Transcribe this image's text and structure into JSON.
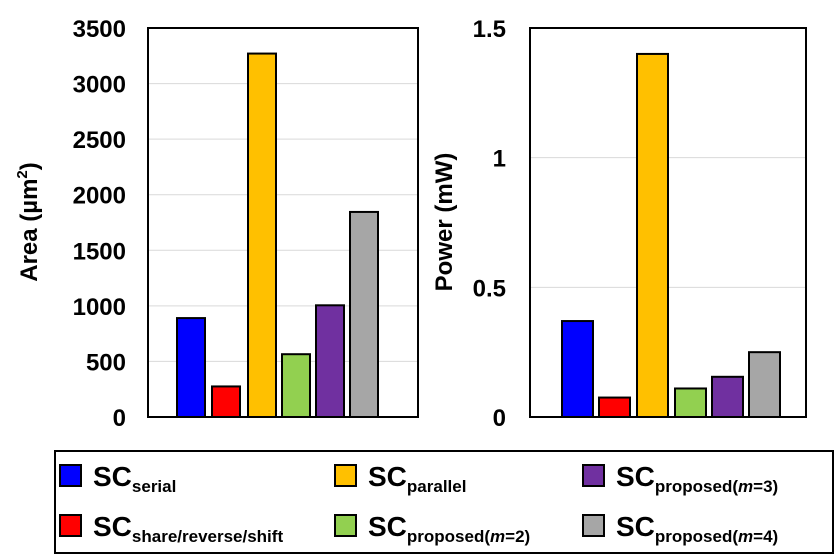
{
  "chart_data": [
    {
      "type": "bar",
      "ylabel": "Area (µm2)",
      "ylabel_main": "Area (µm",
      "ylabel_sup": "2",
      "ylabel_close": ")",
      "ylim": [
        0,
        3500
      ],
      "yticks": [
        "0",
        "500",
        "1000",
        "1500",
        "2000",
        "2500",
        "3000",
        "3500"
      ],
      "grid": true,
      "series": [
        {
          "name": "SCserial",
          "values": [
            890
          ]
        },
        {
          "name": "SCshare/reverse/shift",
          "values": [
            275
          ]
        },
        {
          "name": "SCparallel",
          "values": [
            3270
          ]
        },
        {
          "name": "SCproposed(m=2)",
          "values": [
            565
          ]
        },
        {
          "name": "SCproposed(m=3)",
          "values": [
            1005
          ]
        },
        {
          "name": "SCproposed(m=4)",
          "values": [
            1845
          ]
        }
      ]
    },
    {
      "type": "bar",
      "ylabel": "Power (mW)",
      "ylim": [
        0,
        1.5
      ],
      "yticks": [
        "0",
        "0.5",
        "1",
        "1.5"
      ],
      "grid": true,
      "series": [
        {
          "name": "SCserial",
          "values": [
            0.37
          ]
        },
        {
          "name": "SCshare/reverse/shift",
          "values": [
            0.075
          ]
        },
        {
          "name": "SCparallel",
          "values": [
            1.4
          ]
        },
        {
          "name": "SCproposed(m=2)",
          "values": [
            0.11
          ]
        },
        {
          "name": "SCproposed(m=3)",
          "values": [
            0.155
          ]
        },
        {
          "name": "SCproposed(m=4)",
          "values": [
            0.25
          ]
        }
      ]
    }
  ],
  "colors": {
    "serial": "#0000ff",
    "share": "#ff0000",
    "parallel": "#ffc000",
    "proposed2": "#92d050",
    "proposed3": "#7030a0",
    "proposed4": "#a6a6a6"
  },
  "legend": {
    "placement": "bottom",
    "items": [
      {
        "key": "serial",
        "main": "SC",
        "sub": "serial",
        "sub_m": "",
        "sub_tail": ""
      },
      {
        "key": "parallel",
        "main": "SC",
        "sub": "parallel",
        "sub_m": "",
        "sub_tail": ""
      },
      {
        "key": "proposed3",
        "main": "SC",
        "sub": "proposed(",
        "sub_m": "m",
        "sub_tail": "=3)"
      },
      {
        "key": "share",
        "main": "SC",
        "sub": "share/reverse/shift",
        "sub_m": "",
        "sub_tail": ""
      },
      {
        "key": "proposed2",
        "main": "SC",
        "sub": "proposed(",
        "sub_m": "m",
        "sub_tail": "=2)"
      },
      {
        "key": "proposed4",
        "main": "SC",
        "sub": "proposed(",
        "sub_m": "m",
        "sub_tail": "=4)"
      }
    ]
  }
}
